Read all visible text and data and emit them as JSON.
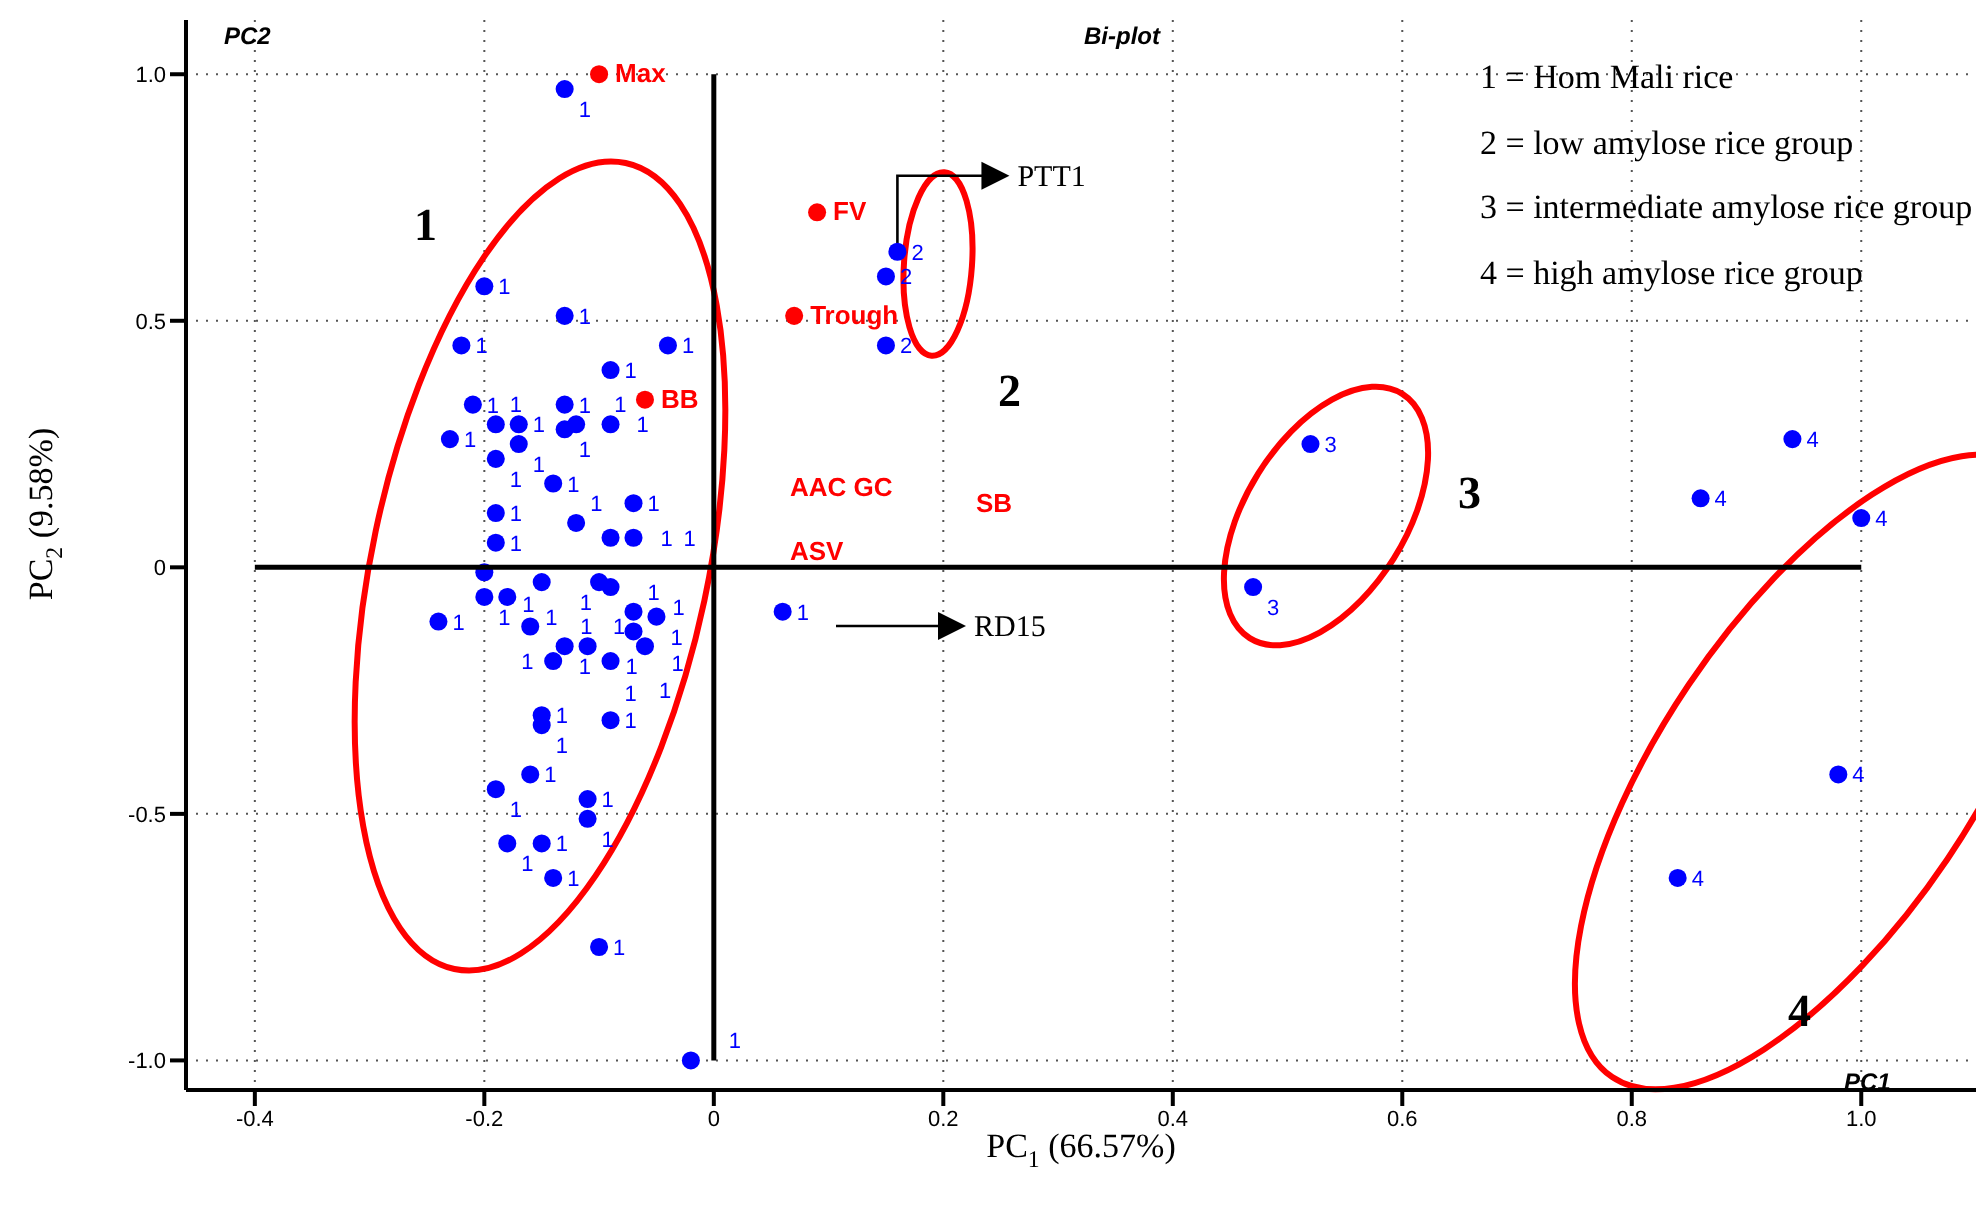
{
  "chart_data": {
    "type": "scatter",
    "xlabel": "PC$_{1}$ (66.57%)",
    "ylabel": "PC$_{2}$ (9.58%)",
    "xlim": [
      -0.46,
      1.1
    ],
    "ylim": [
      -1.06,
      1.11
    ],
    "xticks": [
      {
        "value": -0.4,
        "label": "-0.4"
      },
      {
        "value": -0.2,
        "label": "-0.2"
      },
      0,
      0.2,
      0.4,
      0.6,
      0.8,
      {
        "value": 1,
        "label": "1.0"
      }
    ],
    "yticks": [
      {
        "value": -1,
        "label": "-1.0"
      },
      -0.5,
      0,
      0.5,
      {
        "value": 1,
        "label": "1.0"
      }
    ],
    "grid": true,
    "marker": "circle",
    "series": [
      {
        "name": "1",
        "color": "#0000ff",
        "x": [
          -0.13,
          -0.2,
          -0.13,
          -0.22,
          -0.04,
          -0.09,
          -0.21,
          -0.13,
          -0.19,
          -0.17,
          -0.23,
          -0.19,
          -0.17,
          -0.13,
          -0.12,
          -0.09,
          -0.14,
          -0.19,
          -0.12,
          -0.07,
          -0.19,
          -0.09,
          -0.07,
          -0.2,
          -0.2,
          -0.18,
          -0.15,
          -0.1,
          -0.09,
          -0.24,
          -0.16,
          -0.07,
          -0.05,
          0.06,
          -0.13,
          -0.11,
          -0.07,
          -0.06,
          -0.14,
          -0.09,
          -0.15,
          -0.15,
          -0.09,
          -0.16,
          -0.19,
          -0.11,
          -0.11,
          -0.18,
          -0.15,
          -0.14,
          -0.1,
          -0.02
        ],
        "values": [
          0.97,
          0.57,
          0.51,
          0.45,
          0.45,
          0.4,
          0.33,
          0.33,
          0.29,
          0.29,
          0.26,
          0.22,
          0.25,
          0.28,
          0.29,
          0.29,
          0.17,
          0.11,
          0.09,
          0.13,
          0.05,
          0.06,
          0.06,
          -0.01,
          -0.06,
          -0.06,
          -0.03,
          -0.03,
          -0.04,
          -0.11,
          -0.12,
          -0.09,
          -0.1,
          -0.09,
          -0.16,
          -0.16,
          -0.13,
          -0.16,
          -0.19,
          -0.19,
          -0.3,
          -0.32,
          -0.31,
          -0.42,
          -0.45,
          -0.47,
          -0.51,
          -0.56,
          -0.56,
          -0.63,
          -0.77,
          -1.0
        ]
      },
      {
        "name": "2",
        "color": "#0000ff",
        "x": [
          0.16,
          0.15,
          0.15
        ],
        "values": [
          0.64,
          0.59,
          0.45
        ]
      },
      {
        "name": "3",
        "color": "#0000ff",
        "x": [
          0.52,
          0.47
        ],
        "values": [
          0.25,
          -0.04
        ]
      },
      {
        "name": "4",
        "color": "#0000ff",
        "x": [
          0.94,
          0.86,
          1.0,
          0.98,
          0.84
        ],
        "values": [
          0.26,
          0.14,
          0.1,
          -0.42,
          -0.63
        ]
      },
      {
        "color": "#ff0000",
        "x": [
          -0.1,
          0.09,
          0.07,
          -0.06
        ],
        "values": [
          1.0,
          0.72,
          0.51,
          0.34
        ],
        "value_labels": [
          "Max",
          "FV",
          "Trough",
          "BB"
        ]
      },
      {
        "type": "line",
        "marker": "none",
        "color": "#000000",
        "x": [
          0,
          0
        ],
        "values": [
          -1,
          1
        ]
      },
      {
        "type": "line",
        "marker": "none",
        "color": "#000000",
        "x": [
          -0.4,
          1.0
        ],
        "values": [
          0,
          0
        ]
      }
    ],
    "annotations": [
      "PC2",
      "PC1",
      "Bi-plot",
      "1 = Hom Mali rice",
      "2 = low amylose rice group",
      "3 = intermediate amylose rice group",
      "4 = high amylose rice group",
      "1",
      "2",
      "3",
      "4",
      {
        "text": "PTT1",
        "x": 0.16,
        "y": 0.64
      },
      "RD15",
      "AAC GC",
      "ASV",
      "SB"
    ]
  }
}
